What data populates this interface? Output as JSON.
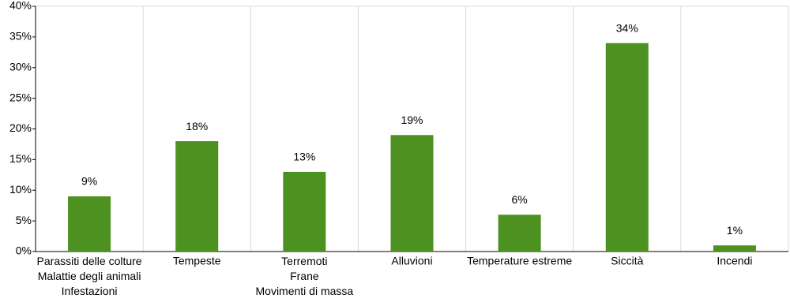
{
  "chart_data": {
    "type": "bar",
    "categories": [
      "Parassiti delle colture\nMalattie degli animali\nInfestazioni",
      "Tempeste",
      "Terremoti\nFrane\nMovimenti di massa",
      "Alluvioni",
      "Temperature estreme",
      "Siccità",
      "Incendi"
    ],
    "values": [
      9,
      18,
      13,
      19,
      6,
      34,
      1
    ],
    "value_labels": [
      "9%",
      "18%",
      "13%",
      "19%",
      "6%",
      "34%",
      "1%"
    ],
    "color": "#4d9221",
    "ylim": [
      0,
      40
    ],
    "yticks": [
      {
        "value": 0,
        "label": "0%"
      },
      {
        "value": 5,
        "label": "5%"
      },
      {
        "value": 10,
        "label": "10%"
      },
      {
        "value": 15,
        "label": "15%"
      },
      {
        "value": 20,
        "label": "20%"
      },
      {
        "value": 25,
        "label": "25%"
      },
      {
        "value": 30,
        "label": "30%"
      },
      {
        "value": 35,
        "label": "35%"
      },
      {
        "value": 40,
        "label": "40%"
      }
    ]
  }
}
